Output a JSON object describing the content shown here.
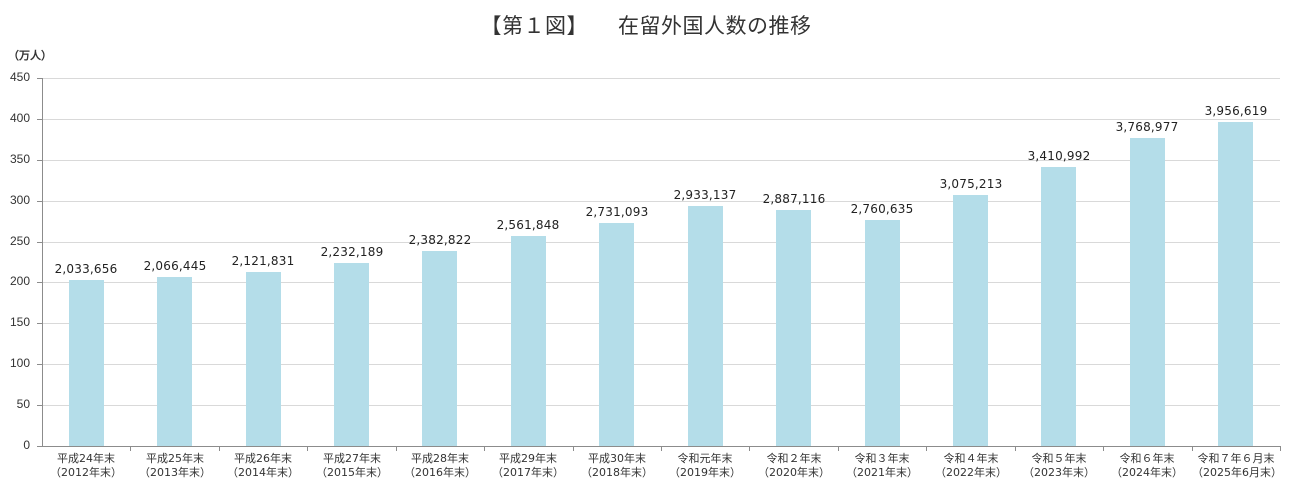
{
  "title": {
    "figure_no": "【第１図】",
    "text": "在留外国人数の推移"
  },
  "y_unit": "（万人）",
  "y_ticks": [
    "0",
    "50",
    "100",
    "150",
    "200",
    "250",
    "300",
    "350",
    "400",
    "450"
  ],
  "colors": {
    "bar": "#b4dde9",
    "grid": "#d9d9d9",
    "axis": "#8c8c8c"
  },
  "chart_data": {
    "type": "bar",
    "title": "【第１図】 在留外国人数の推移",
    "xlabel": "",
    "ylabel": "（万人）",
    "ylim": [
      0,
      450
    ],
    "yticks": [
      0,
      50,
      100,
      150,
      200,
      250,
      300,
      350,
      400,
      450
    ],
    "grid": true,
    "legend": null,
    "categories": [
      "平成24年末（2012年末）",
      "平成25年末（2013年末）",
      "平成26年末（2014年末）",
      "平成27年末（2015年末）",
      "平成28年末（2016年末）",
      "平成29年末（2017年末）",
      "平成30年末（2018年末）",
      "令和元年末（2019年末）",
      "令和２年末（2020年末）",
      "令和３年末（2021年末）",
      "令和４年末（2022年末）",
      "令和５年末（2023年末）",
      "令和６年末（2024年末）",
      "令和７年６月末（2025年6月末）"
    ],
    "values": [
      2033656,
      2066445,
      2121831,
      2232189,
      2382822,
      2561848,
      2731093,
      2933137,
      2887116,
      2760635,
      3075213,
      3410992,
      3768977,
      3956619
    ],
    "values_in_unit": [
      203.3656,
      206.6445,
      212.1831,
      223.2189,
      238.2822,
      256.1848,
      273.1093,
      293.3137,
      288.7116,
      276.0635,
      307.5213,
      341.0992,
      376.8977,
      395.6619
    ],
    "data_labels": [
      "2,033,656",
      "2,066,445",
      "2,121,831",
      "2,232,189",
      "2,382,822",
      "2,561,848",
      "2,731,093",
      "2,933,137",
      "2,887,116",
      "2,760,635",
      "3,075,213",
      "3,410,992",
      "3,768,977",
      "3,956,619"
    ]
  },
  "x_labels": [
    {
      "line1": "平成24年末",
      "line2": "（2012年末）"
    },
    {
      "line1": "平成25年末",
      "line2": "（2013年末）"
    },
    {
      "line1": "平成26年末",
      "line2": "（2014年末）"
    },
    {
      "line1": "平成27年末",
      "line2": "（2015年末）"
    },
    {
      "line1": "平成28年末",
      "line2": "（2016年末）"
    },
    {
      "line1": "平成29年末",
      "line2": "（2017年末）"
    },
    {
      "line1": "平成30年末",
      "line2": "（2018年末）"
    },
    {
      "line1": "令和元年末",
      "line2": "（2019年末）"
    },
    {
      "line1": "令和２年末",
      "line2": "（2020年末）"
    },
    {
      "line1": "令和３年末",
      "line2": "（2021年末）"
    },
    {
      "line1": "令和４年末",
      "line2": "（2022年末）"
    },
    {
      "line1": "令和５年末",
      "line2": "（2023年末）"
    },
    {
      "line1": "令和６年末",
      "line2": "（2024年末）"
    },
    {
      "line1": "令和７年６月末",
      "line2": "（2025年6月末）"
    }
  ]
}
